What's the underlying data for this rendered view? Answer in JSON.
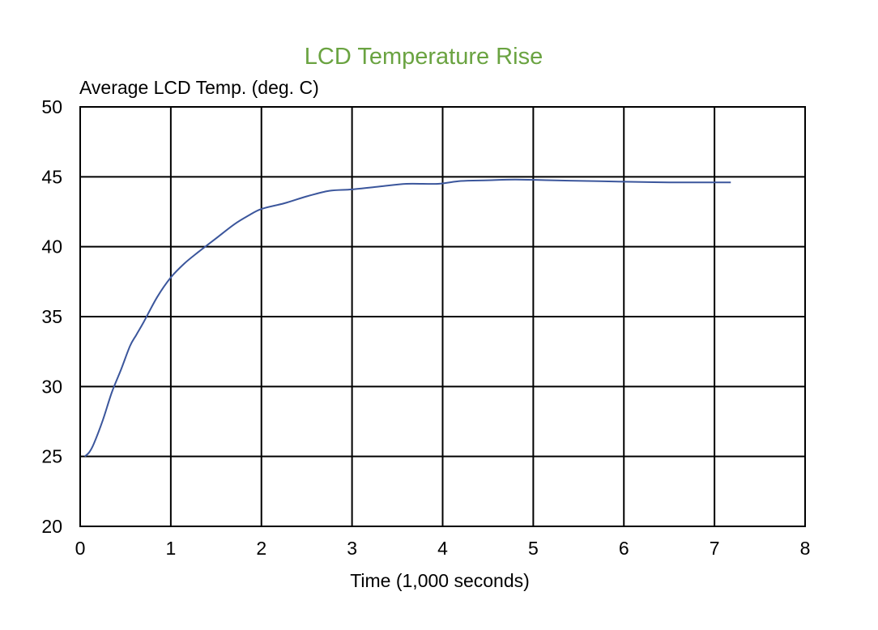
{
  "chart_data": {
    "type": "line",
    "title": "LCD Temperature Rise",
    "xlabel": "Time (1,000 seconds)",
    "ylabel": "Average LCD Temp. (deg. C)",
    "xlim": [
      0,
      8
    ],
    "ylim": [
      20,
      50
    ],
    "x_ticks": [
      0,
      1,
      2,
      3,
      4,
      5,
      6,
      7,
      8
    ],
    "y_ticks": [
      20,
      25,
      30,
      35,
      40,
      45,
      50
    ],
    "grid": true,
    "series": [
      {
        "color": "#3b569c",
        "x": [
          0.05,
          0.1,
          0.15,
          0.25,
          0.35,
          0.45,
          0.55,
          0.62,
          0.7,
          0.85,
          1.0,
          1.15,
          1.3,
          1.5,
          1.7,
          1.85,
          2.0,
          2.25,
          2.5,
          2.75,
          3.0,
          3.3,
          3.6,
          3.95,
          4.2,
          4.5,
          4.8,
          5.2,
          5.6,
          6.0,
          6.5,
          7.0,
          7.18
        ],
        "y": [
          25.0,
          25.3,
          25.9,
          27.6,
          29.6,
          31.2,
          32.9,
          33.7,
          34.6,
          36.4,
          37.8,
          38.8,
          39.6,
          40.6,
          41.6,
          42.2,
          42.7,
          43.1,
          43.6,
          44.0,
          44.1,
          44.3,
          44.5,
          44.5,
          44.7,
          44.75,
          44.8,
          44.75,
          44.7,
          44.65,
          44.6,
          44.6,
          44.6
        ]
      }
    ],
    "text_color": "#000000",
    "title_color": "#6aa341"
  }
}
